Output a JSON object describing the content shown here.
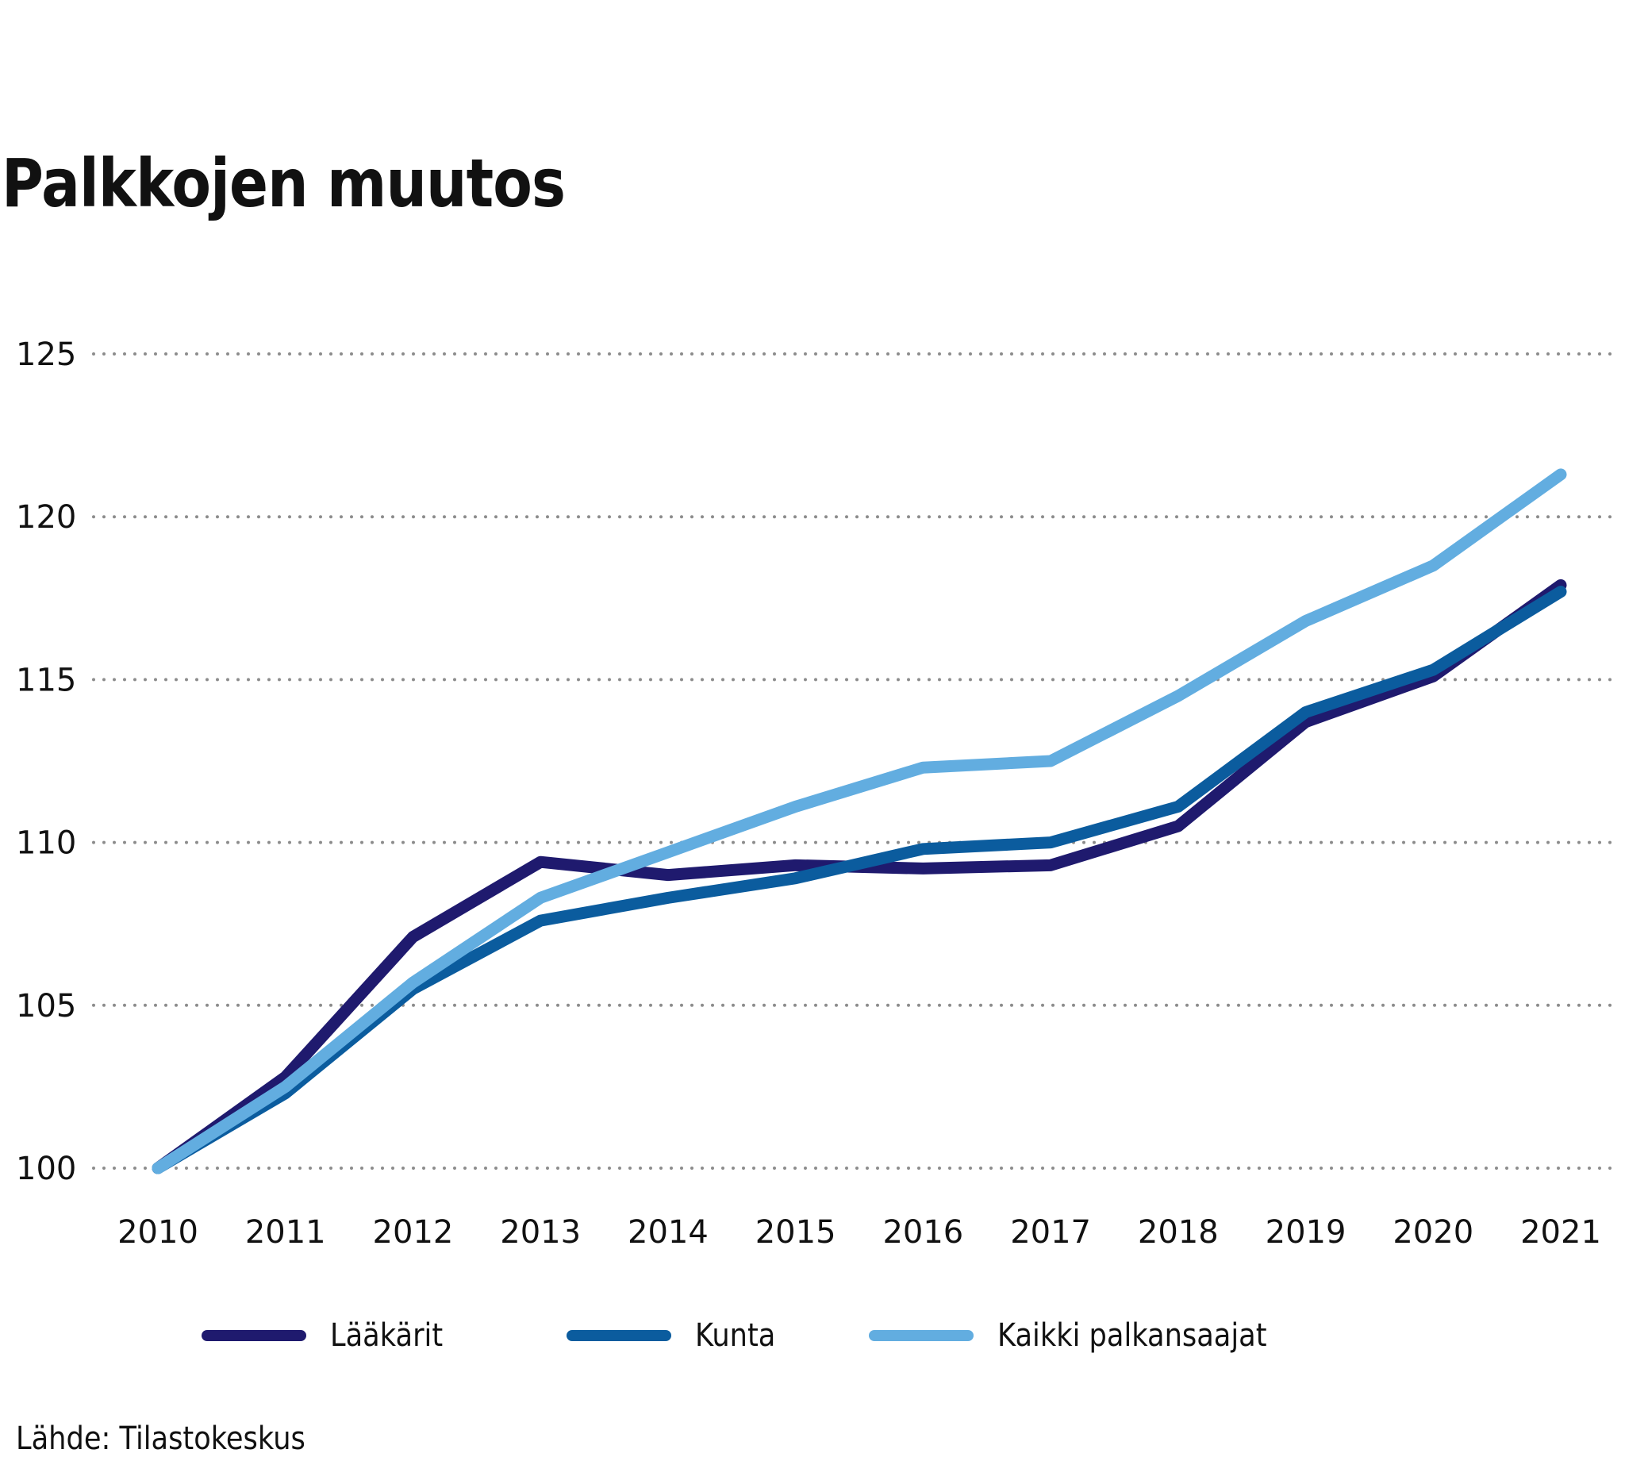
{
  "chart_data": {
    "type": "line",
    "title": "Palkkojen muutos",
    "xlabel": "",
    "ylabel": "",
    "x": [
      "2010",
      "2011",
      "2012",
      "2013",
      "2014",
      "2015",
      "2016",
      "2017",
      "2018",
      "2019",
      "2020",
      "2021"
    ],
    "ylim": [
      100,
      125
    ],
    "yticks": [
      "100",
      "105",
      "110",
      "115",
      "120",
      "125"
    ],
    "ytick_values": [
      100,
      105,
      110,
      115,
      120,
      125
    ],
    "grid": true,
    "legend_position": "bottom",
    "series": [
      {
        "name": "Lääkärit",
        "color": "#1f1a6e",
        "values": [
          100,
          102.8,
          107.1,
          109.4,
          109.0,
          109.3,
          109.2,
          109.3,
          110.5,
          113.7,
          115.1,
          117.9
        ]
      },
      {
        "name": "Kunta",
        "color": "#0b5c9e",
        "values": [
          100,
          102.3,
          105.5,
          107.6,
          108.3,
          108.9,
          109.8,
          110.0,
          111.1,
          114.0,
          115.3,
          117.7
        ]
      },
      {
        "name": "Kaikki palkansaajat",
        "color": "#62ade0",
        "values": [
          100,
          102.5,
          105.7,
          108.3,
          109.7,
          111.1,
          112.3,
          112.5,
          114.5,
          116.8,
          118.5,
          121.3
        ]
      }
    ],
    "source": "Lähde: Tilastokeskus"
  }
}
